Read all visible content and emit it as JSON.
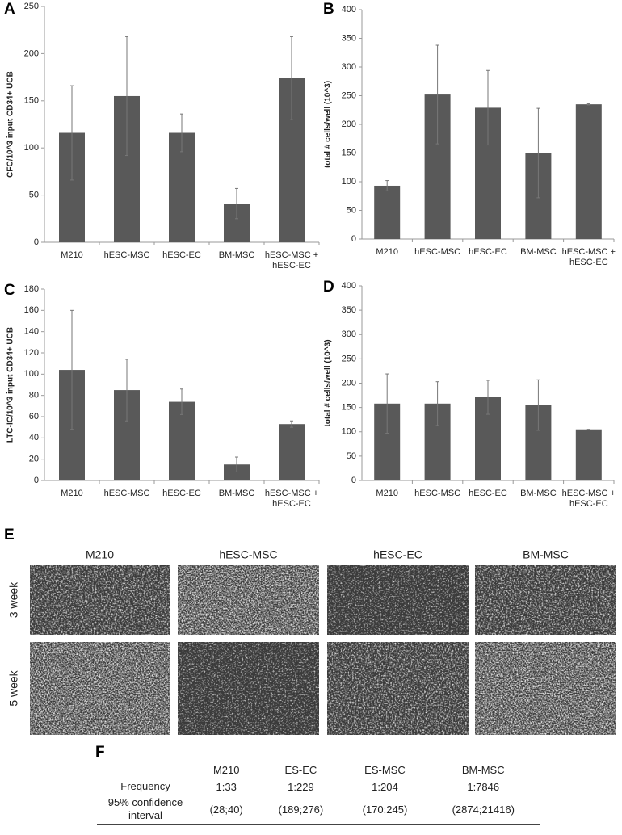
{
  "chart_data": [
    {
      "type": "bar",
      "panel": "A",
      "ylabel": "CFC/10^3 input CD34+ UCB",
      "categories": [
        "M210",
        "hESC-MSC",
        "hESC-EC",
        "BM-MSC",
        "hESC-MSC + hESC-EC"
      ],
      "values": [
        116,
        155,
        116,
        41,
        174
      ],
      "errors": [
        50,
        63,
        20,
        16,
        44
      ],
      "color": "#595959",
      "ylim": [
        0,
        250
      ],
      "yticks": [
        0,
        50,
        100,
        150,
        200,
        250
      ]
    },
    {
      "type": "bar",
      "panel": "B",
      "ylabel": "total # cells/well (10^3)",
      "categories": [
        "M210",
        "hESC-MSC",
        "hESC-EC",
        "BM-MSC",
        "hESC-MSC + hESC-EC"
      ],
      "values": [
        93,
        252,
        229,
        150,
        235
      ],
      "errors": [
        9,
        86,
        65,
        78,
        1
      ],
      "color": "#595959",
      "ylim": [
        0,
        400
      ],
      "yticks": [
        0,
        50,
        100,
        150,
        200,
        250,
        300,
        350,
        400
      ]
    },
    {
      "type": "bar",
      "panel": "C",
      "ylabel": "LTC-IC/10^3 input CD34+ UCB",
      "categories": [
        "M210",
        "hESC-MSC",
        "hESC-EC",
        "BM-MSC",
        "hESC-MSC + hESC-EC"
      ],
      "values": [
        104,
        85,
        74,
        15,
        53
      ],
      "errors": [
        56,
        29,
        12,
        7,
        3
      ],
      "color": "#595959",
      "ylim": [
        0,
        180
      ],
      "yticks": [
        0,
        20,
        40,
        60,
        80,
        100,
        120,
        140,
        160,
        180
      ]
    },
    {
      "type": "bar",
      "panel": "D",
      "ylabel": "total # cells/well (10^3)",
      "categories": [
        "M210",
        "hESC-MSC",
        "hESC-EC",
        "BM-MSC",
        "hESC-MSC + hESC-EC"
      ],
      "values": [
        158,
        158,
        171,
        155,
        105
      ],
      "errors": [
        61,
        45,
        35,
        52,
        0
      ],
      "color": "#595959",
      "ylim": [
        0,
        400
      ],
      "yticks": [
        0,
        50,
        100,
        150,
        200,
        250,
        300,
        350,
        400
      ]
    }
  ],
  "images": {
    "panel": "E",
    "columns": [
      "M210",
      "hESC-MSC",
      "hESC-EC",
      "BM-MSC"
    ],
    "rows": [
      "3 week",
      "5 week"
    ]
  },
  "table": {
    "panel": "F",
    "columns": [
      "M210",
      "ES-EC",
      "ES-MSC",
      "BM-MSC"
    ],
    "rows": [
      {
        "label": "Frequency",
        "cells": [
          "1:33",
          "1:229",
          "1:204",
          "1:7846"
        ]
      },
      {
        "label": "95% confidence interval",
        "cells": [
          "(28;40)",
          "(189;276)",
          "(170:245)",
          "(2874;21416)"
        ]
      }
    ]
  }
}
